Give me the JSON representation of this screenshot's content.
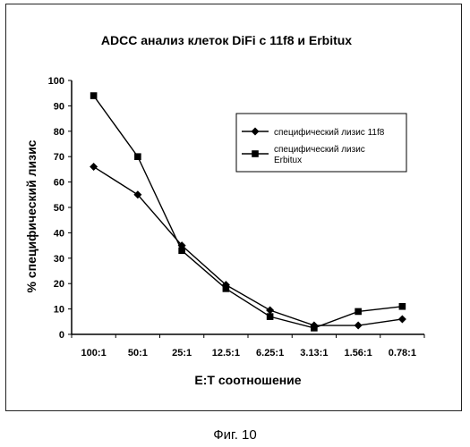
{
  "caption": "Фиг. 10",
  "chart_data": {
    "type": "line",
    "title": "ADCC анализ клеток DiFi с 11f8 и Erbitux",
    "xlabel": "E:T соотношение",
    "ylabel": "% специфический лизис",
    "categories": [
      "100:1",
      "50:1",
      "25:1",
      "12.5:1",
      "6.25:1",
      "3.13:1",
      "1.56:1",
      "0.78:1"
    ],
    "ylim": [
      0,
      100
    ],
    "yticks": [
      0,
      10,
      20,
      30,
      40,
      50,
      60,
      70,
      80,
      90,
      100
    ],
    "grid": false,
    "legend_position": "right",
    "series": [
      {
        "name": "специфический лизис 11f8",
        "marker": "diamond",
        "color": "#000000",
        "values": [
          66,
          55,
          35,
          19.5,
          9.5,
          3.5,
          3.5,
          6
        ]
      },
      {
        "name": "специфический лизис Erbitux",
        "marker": "square",
        "color": "#000000",
        "values": [
          94,
          70,
          33,
          18,
          7,
          2.5,
          9,
          11
        ]
      }
    ]
  }
}
